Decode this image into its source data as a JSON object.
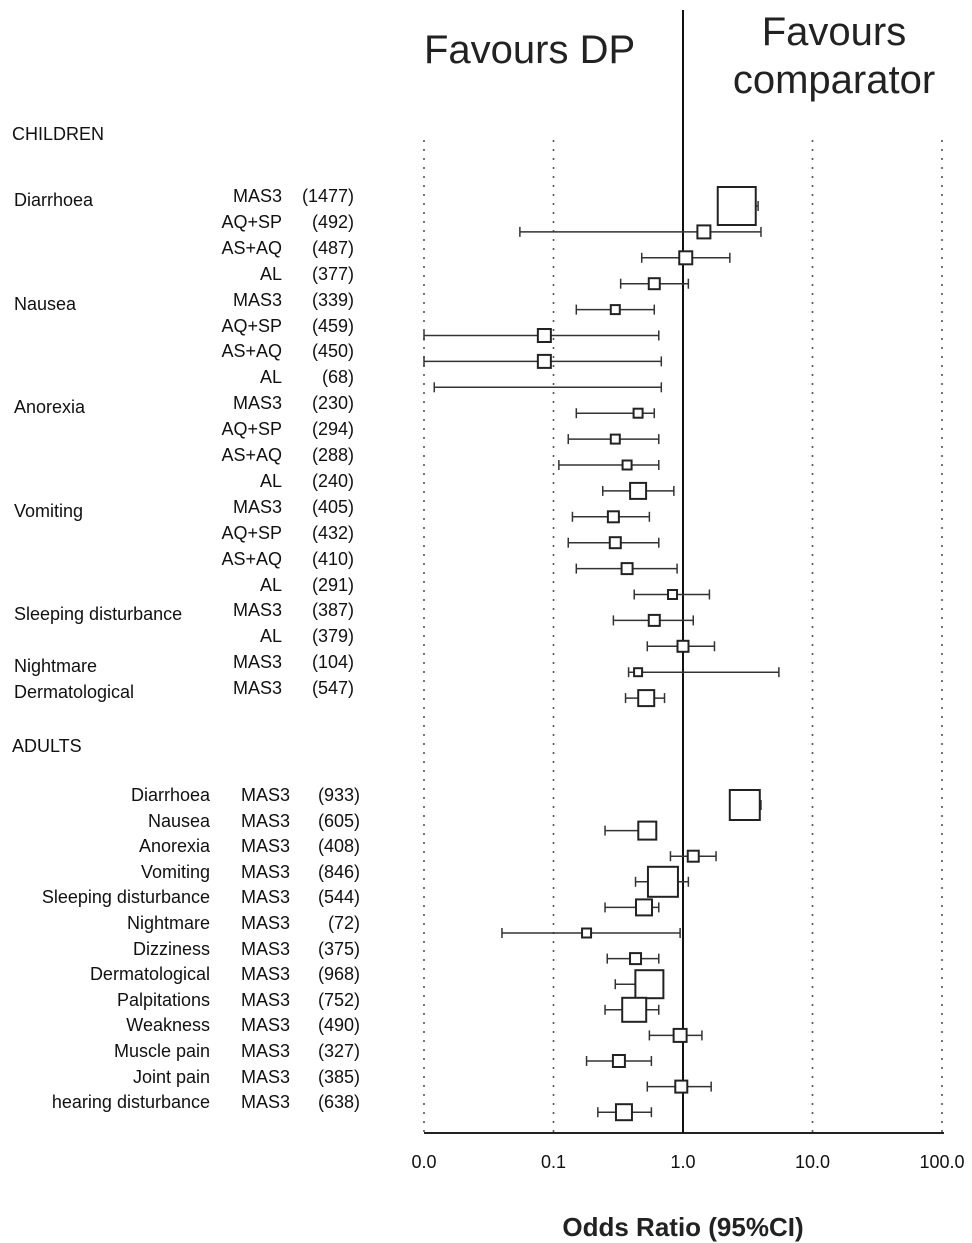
{
  "chart_data": {
    "type": "forest",
    "favours_left": "Favours DP",
    "favours_right": "Favours comparator",
    "xlabel": "Odds Ratio (95%CI)",
    "x_ticks": [
      "0.0",
      "0.1",
      "1.0",
      "10.0",
      "100.0"
    ],
    "x_scale": "log",
    "xlim": [
      0.01,
      100
    ],
    "reference_line": 1.0,
    "sections": [
      {
        "label": "CHILDREN",
        "rows": [
          {
            "outcome": "Diarrhoea",
            "comparator": "MAS3",
            "n": "(1477)",
            "or": 2.6,
            "lo": 2.0,
            "hi": 3.8
          },
          {
            "outcome": "",
            "comparator": "AQ+SP",
            "n": "(492)",
            "or": 1.45,
            "lo": 0.055,
            "hi": 4.0
          },
          {
            "outcome": "",
            "comparator": "AS+AQ",
            "n": "(487)",
            "or": 1.05,
            "lo": 0.48,
            "hi": 2.3
          },
          {
            "outcome": "",
            "comparator": "AL",
            "n": "(377)",
            "or": 0.6,
            "lo": 0.33,
            "hi": 1.1
          },
          {
            "outcome": "Nausea",
            "comparator": "MAS3",
            "n": "(339)",
            "or": 0.3,
            "lo": 0.15,
            "hi": 0.6
          },
          {
            "outcome": "",
            "comparator": "AQ+SP",
            "n": "(459)",
            "or": 0.085,
            "lo": 0.01,
            "hi": 0.65
          },
          {
            "outcome": "",
            "comparator": "AS+AQ",
            "n": "(450)",
            "or": 0.085,
            "lo": 0.01,
            "hi": 0.68
          },
          {
            "outcome": "",
            "comparator": "AL",
            "n": "(68)",
            "or": null,
            "lo": 0.012,
            "hi": 0.68
          },
          {
            "outcome": "Anorexia",
            "comparator": "MAS3",
            "n": "(230)",
            "or": 0.45,
            "lo": 0.15,
            "hi": 0.6
          },
          {
            "outcome": "",
            "comparator": "AQ+SP",
            "n": "(294)",
            "or": 0.3,
            "lo": 0.13,
            "hi": 0.65
          },
          {
            "outcome": "",
            "comparator": "AS+AQ",
            "n": "(288)",
            "or": 0.37,
            "lo": 0.11,
            "hi": 0.65
          },
          {
            "outcome": "",
            "comparator": "AL",
            "n": "(240)",
            "or": 0.45,
            "lo": 0.24,
            "hi": 0.85
          },
          {
            "outcome": "Vomiting",
            "comparator": "MAS3",
            "n": "(405)",
            "or": 0.29,
            "lo": 0.14,
            "hi": 0.55
          },
          {
            "outcome": "",
            "comparator": "AQ+SP",
            "n": "(432)",
            "or": 0.3,
            "lo": 0.13,
            "hi": 0.65
          },
          {
            "outcome": "",
            "comparator": "AS+AQ",
            "n": "(410)",
            "or": 0.37,
            "lo": 0.15,
            "hi": 0.9
          },
          {
            "outcome": "",
            "comparator": "AL",
            "n": "(291)",
            "or": 0.83,
            "lo": 0.42,
            "hi": 1.6
          },
          {
            "outcome": "Sleeping disturbance",
            "comparator": "MAS3",
            "n": "(387)",
            "or": 0.6,
            "lo": 0.29,
            "hi": 1.2
          },
          {
            "outcome": "",
            "comparator": "AL",
            "n": "(379)",
            "or": 1.0,
            "lo": 0.53,
            "hi": 1.75
          },
          {
            "outcome": "Nightmare",
            "comparator": "MAS3",
            "n": "(104)",
            "or": 0.45,
            "lo": 0.38,
            "hi": 5.5
          },
          {
            "outcome": "Dermatological",
            "comparator": "MAS3",
            "n": "(547)",
            "or": 0.52,
            "lo": 0.36,
            "hi": 0.72
          }
        ]
      },
      {
        "label": "ADULTS",
        "rows": [
          {
            "outcome": "Diarrhoea",
            "comparator": "MAS3",
            "n": "(933)",
            "or": 3.0,
            "lo": 2.5,
            "hi": 4.0
          },
          {
            "outcome": "Nausea",
            "comparator": "MAS3",
            "n": "(605)",
            "or": 0.53,
            "lo": 0.25,
            "hi": 0.6
          },
          {
            "outcome": "Anorexia",
            "comparator": "MAS3",
            "n": "(408)",
            "or": 1.2,
            "lo": 0.8,
            "hi": 1.8
          },
          {
            "outcome": "Vomiting",
            "comparator": "MAS3",
            "n": "(846)",
            "or": 0.7,
            "lo": 0.43,
            "hi": 1.1
          },
          {
            "outcome": "Sleeping disturbance",
            "comparator": "MAS3",
            "n": "(544)",
            "or": 0.5,
            "lo": 0.25,
            "hi": 0.65
          },
          {
            "outcome": "Nightmare",
            "comparator": "MAS3",
            "n": "(72)",
            "or": 0.18,
            "lo": 0.04,
            "hi": 0.95
          },
          {
            "outcome": "Dizziness",
            "comparator": "MAS3",
            "n": "(375)",
            "or": 0.43,
            "lo": 0.26,
            "hi": 0.65
          },
          {
            "outcome": "Dermatological",
            "comparator": "MAS3",
            "n": "(968)",
            "or": 0.55,
            "lo": 0.3,
            "hi": 0.7
          },
          {
            "outcome": "Palpitations",
            "comparator": "MAS3",
            "n": "(752)",
            "or": 0.42,
            "lo": 0.25,
            "hi": 0.65
          },
          {
            "outcome": "Weakness",
            "comparator": "MAS3",
            "n": "(490)",
            "or": 0.95,
            "lo": 0.55,
            "hi": 1.4
          },
          {
            "outcome": "Muscle pain",
            "comparator": "MAS3",
            "n": "(327)",
            "or": 0.32,
            "lo": 0.18,
            "hi": 0.57
          },
          {
            "outcome": "Joint pain",
            "comparator": "MAS3",
            "n": "(385)",
            "or": 0.97,
            "lo": 0.53,
            "hi": 1.65
          },
          {
            "outcome": "hearing disturbance",
            "comparator": "MAS3",
            "n": "(638)",
            "or": 0.35,
            "lo": 0.22,
            "hi": 0.57
          }
        ]
      }
    ]
  }
}
